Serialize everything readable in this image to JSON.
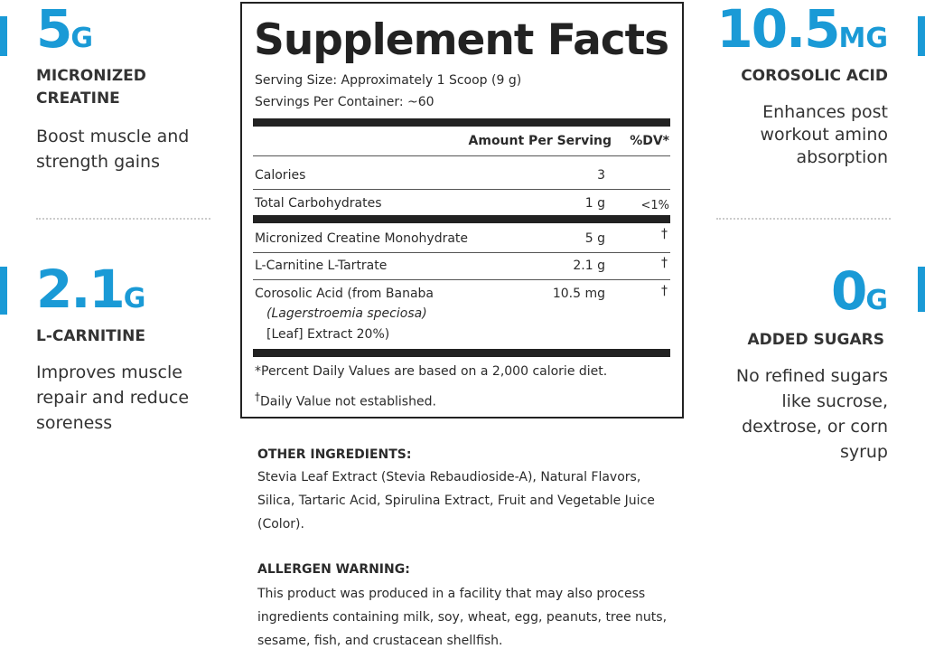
{
  "features": [
    {
      "amount": "5",
      "unit": "G",
      "label": "MICRONIZED CREATINE",
      "description": "Boost muscle and strength gains"
    },
    {
      "amount": "2.1",
      "unit": "G",
      "label": "L-CARNITINE",
      "description": "Improves muscle repair and reduce soreness"
    },
    {
      "amount": "10.5",
      "unit": "MG",
      "label": "COROSOLIC ACID",
      "description": "Enhances post workout amino absorption"
    },
    {
      "amount": "0",
      "unit": "G",
      "label": "ADDED SUGARS",
      "description": "No refined sugars like sucrose, dextrose, or corn syrup"
    }
  ],
  "facts": {
    "title": "Supplement Facts",
    "serving_size": "Serving Size: Approximately 1 Scoop (9 g)",
    "servings_per_container": "Servings Per Container: ~60",
    "header": {
      "amount": "Amount Per Serving",
      "dv": "%DV*"
    },
    "rows": [
      {
        "name": "Calories",
        "amount": "3"
      },
      {
        "name": "Total Carbohydrates",
        "amount": "1 g",
        "dv": "<1%"
      },
      {
        "name": "Micronized Creatine Monohydrate",
        "amount": "5 g",
        "dv": "†"
      },
      {
        "name": "L-Carnitine L-Tartrate",
        "amount": "2.1 g",
        "dv": "†"
      },
      {
        "name_lines": [
          "Corosolic Acid (from Banaba",
          "(Lagerstroemia speciosa)",
          "[Leaf] Extract 20%)"
        ],
        "amount": "10.5 mg",
        "dv": "†"
      }
    ],
    "footnotes": [
      "*Percent Daily Values are based on a 2,000 calorie diet.",
      {
        "mark": "†",
        "text": "Daily Value not established."
      }
    ]
  },
  "other_ingredients": {
    "heading": "OTHER INGREDIENTS:",
    "text": "Stevia Leaf Extract (Stevia Rebaudioside-A), Natural Flavors, Silica, Tartaric Acid, Spirulina Extract, Fruit and Vegetable Juice (Color)."
  },
  "allergen_warning": {
    "heading": "ALLERGEN WARNING:",
    "text": "This product was produced in a facility that may also process ingredients containing milk, soy, wheat, egg, peanuts, tree nuts, sesame, fish, and crustacean shellfish."
  }
}
